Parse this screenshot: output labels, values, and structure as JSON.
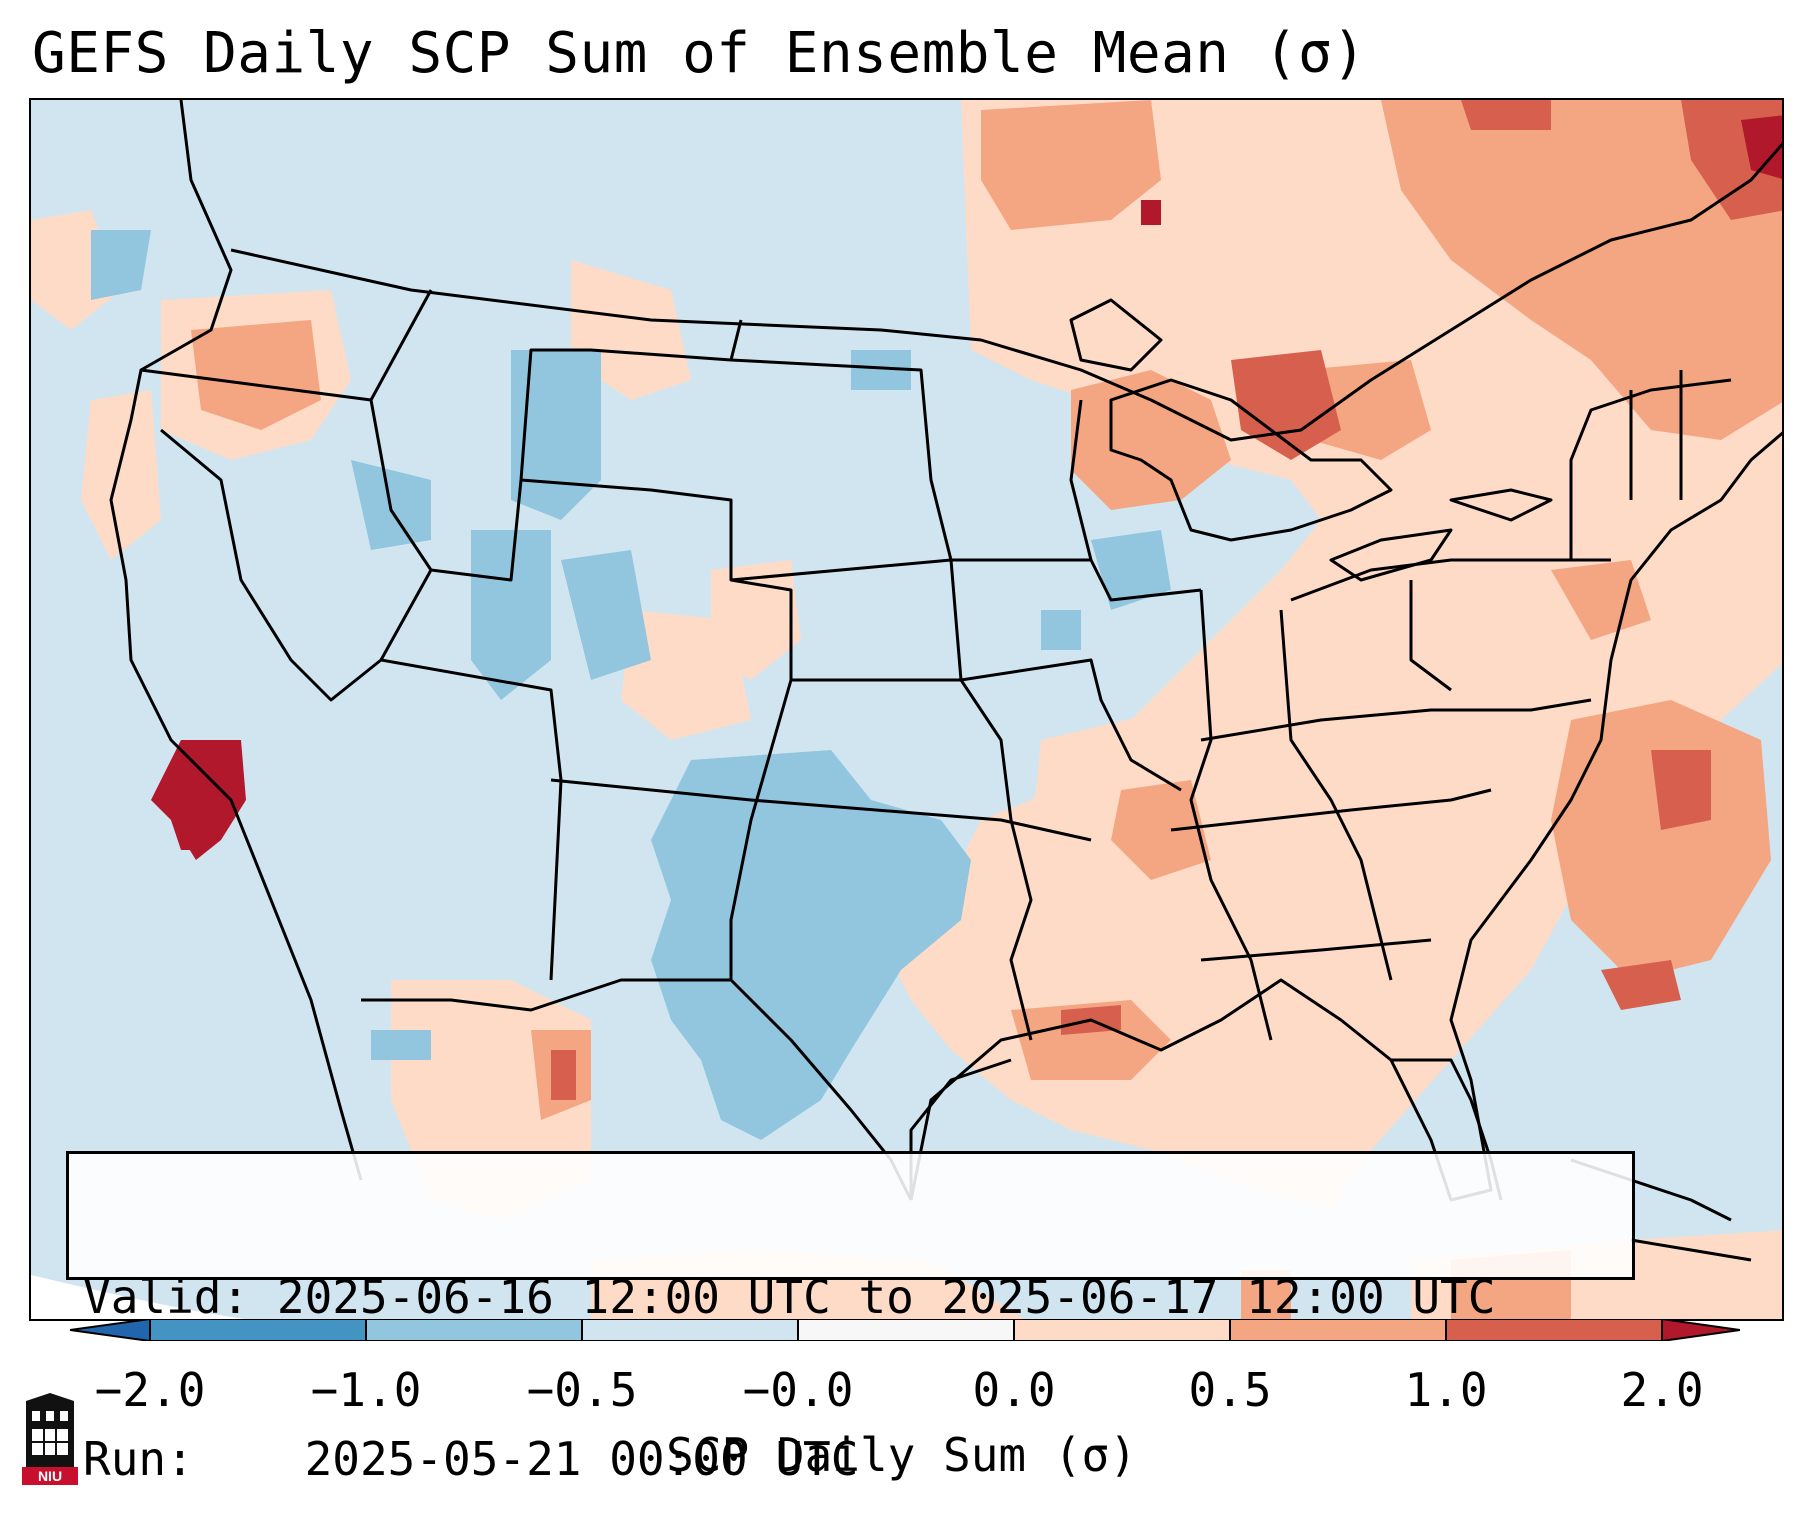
{
  "title": "GEFS Daily SCP Sum of Ensemble Mean (σ)",
  "info": {
    "valid_label": "Valid:",
    "valid_value": "2025-06-16 12:00 UTC to 2025-06-17 12:00 UTC",
    "run_label": "Run:",
    "run_value": "2025-05-21 00:00 UTC"
  },
  "colorbar": {
    "label": "SCP Daily Sum (σ)",
    "ticks": [
      "−2.0",
      "−1.0",
      "−0.5",
      "−0.0",
      "0.0",
      "0.5",
      "1.0",
      "2.0"
    ],
    "colors": {
      "under": "#2166ac",
      "b1": "#4393c3",
      "b2": "#92c5de",
      "b3": "#d1e5f0",
      "b4": "#f7f7f7",
      "b5": "#fddbc7",
      "b6": "#f4a582",
      "b7": "#d6604d",
      "over": "#b2182b"
    }
  },
  "logo": {
    "text": "NIU",
    "icon": "niu-castle-icon"
  }
}
